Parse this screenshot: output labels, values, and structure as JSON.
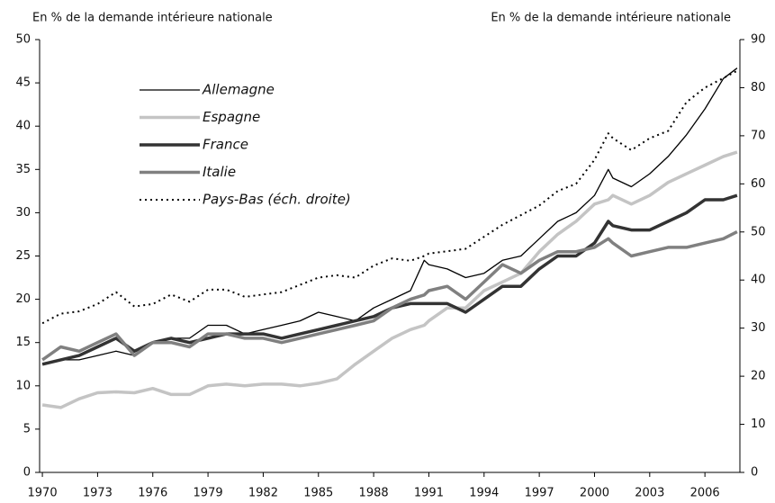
{
  "chart_data": {
    "type": "line",
    "y_label": "En % de la demande intérieure nationale",
    "y2_label": "En % de la demande intérieure nationale",
    "x": [
      1970,
      1971,
      1972,
      1973,
      1974,
      1975,
      1976,
      1977,
      1978,
      1979,
      1980,
      1981,
      1982,
      1983,
      1984,
      1985,
      1986,
      1987,
      1988,
      1989,
      1990,
      1990.75,
      1991,
      1992,
      1993,
      1994,
      1995,
      1996,
      1997,
      1998,
      1999,
      2000,
      2000.75,
      2001,
      2002,
      2003,
      2004,
      2005,
      2006,
      2007,
      2007.75
    ],
    "xlim": [
      1969.85,
      2007.9
    ],
    "xticks": [
      1970,
      1973,
      1976,
      1979,
      1982,
      1985,
      1988,
      1991,
      1994,
      1997,
      2000,
      2003,
      2006
    ],
    "ylim": [
      0,
      50
    ],
    "yticks": [
      0,
      5,
      10,
      15,
      20,
      25,
      30,
      35,
      40,
      45,
      50
    ],
    "y2lim": [
      0,
      90
    ],
    "y2ticks": [
      0,
      10,
      20,
      30,
      40,
      50,
      60,
      70,
      80,
      90
    ],
    "series": [
      {
        "name": "Allemagne",
        "color": "#000000",
        "width": 1.3,
        "dash": false,
        "values": [
          12.5,
          13,
          13,
          13.5,
          14,
          13.5,
          15,
          15.5,
          15.5,
          17,
          17,
          16,
          16.5,
          17,
          17.5,
          18.5,
          18,
          17.5,
          19,
          20,
          21,
          24.5,
          24,
          23.5,
          22.5,
          23,
          24.5,
          25,
          27,
          29,
          30,
          32,
          35,
          34,
          33,
          34.5,
          36.5,
          39,
          42,
          45.5,
          46.7
        ]
      },
      {
        "name": "Espagne",
        "color": "#c4c4c4",
        "width": 3.5,
        "dash": false,
        "values": [
          7.8,
          7.5,
          8.5,
          9.2,
          9.3,
          9.2,
          9.7,
          9,
          9,
          10,
          10.2,
          10,
          10.2,
          10.2,
          10,
          10.3,
          10.8,
          12.5,
          14,
          15.5,
          16.5,
          17,
          17.5,
          19,
          19,
          21,
          22,
          23,
          25.5,
          27.5,
          29,
          31,
          31.5,
          32,
          31,
          32,
          33.5,
          34.5,
          35.5,
          36.5,
          37
        ]
      },
      {
        "name": "France",
        "color": "#333333",
        "width": 3.5,
        "dash": false,
        "values": [
          12.5,
          13,
          13.5,
          14.5,
          15.5,
          14,
          15,
          15.5,
          15,
          15.5,
          16,
          16,
          16,
          15.5,
          16,
          16.5,
          17,
          17.5,
          18,
          19,
          19.5,
          19.5,
          19.5,
          19.5,
          18.5,
          20,
          21.5,
          21.5,
          23.5,
          25,
          25,
          26.5,
          29,
          28.5,
          28,
          28,
          29,
          30,
          31.5,
          31.5,
          32
        ]
      },
      {
        "name": "Italie",
        "color": "#808080",
        "width": 3.5,
        "dash": false,
        "values": [
          13,
          14.5,
          14,
          15,
          16,
          13.5,
          15,
          15,
          14.5,
          16,
          16,
          15.5,
          15.5,
          15,
          15.5,
          16,
          16.5,
          17,
          17.5,
          19,
          20,
          20.5,
          21,
          21.5,
          20,
          22,
          24,
          23,
          24.5,
          25.5,
          25.5,
          26,
          27,
          26.5,
          25,
          25.5,
          26,
          26,
          26.5,
          27,
          27.8
        ]
      },
      {
        "name": "Pays-Bas (éch. droite)",
        "color": "#000000",
        "width": 2,
        "dash": true,
        "axis": "y2",
        "values": [
          31,
          33,
          33.5,
          35,
          37.5,
          34.5,
          35,
          37,
          35.5,
          38,
          38,
          36.5,
          37,
          37.5,
          39,
          40.5,
          41,
          40.5,
          43,
          44.5,
          44,
          45,
          45.5,
          46,
          46.5,
          49,
          51.5,
          53.5,
          55.5,
          58.5,
          60,
          65,
          70.5,
          69.5,
          67,
          69.5,
          71,
          77,
          80,
          82,
          83.5
        ]
      }
    ]
  }
}
